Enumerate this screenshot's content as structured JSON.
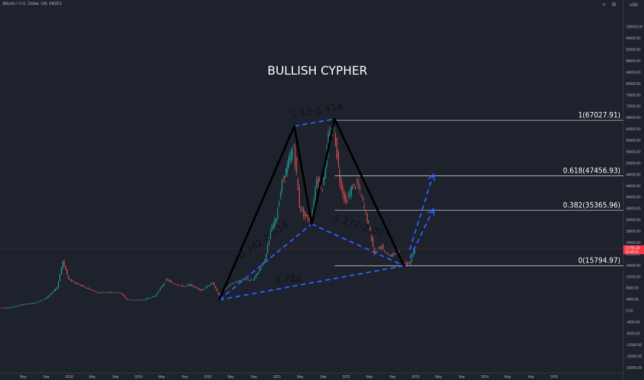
{
  "header": {
    "symbol_title": "Bitcoin / U.S. Dollar, 1W, INDEX",
    "icons": [
      "camera-icon",
      "settings-icon"
    ]
  },
  "price_axis": {
    "currency": "USD",
    "current_price": "21792.43",
    "countdown": "15:49:51"
  },
  "colors": {
    "background": "#1e222d",
    "up": "#26a69a",
    "down": "#ef5350",
    "pattern_line": "#000000",
    "projection": "#2962ff",
    "fib_level": "#d1d4dc",
    "price_line": "#f23645"
  },
  "chart_data": {
    "type": "candlestick",
    "title": "BULLISH CYPHER",
    "ylim": [
      -22000,
      106000
    ],
    "y_ticks": [
      "100000.00",
      "96000.00",
      "92000.00",
      "88000.00",
      "84000.00",
      "80000.00",
      "76000.00",
      "72000.00",
      "68000.00",
      "64000.00",
      "60000.00",
      "56000.00",
      "52000.00",
      "48000.00",
      "44000.00",
      "40000.00",
      "36000.00",
      "32000.00",
      "28000.00",
      "24000.00",
      "20000.00",
      "16000.00",
      "12000.00",
      "8000.00",
      "4000.00",
      "0.00",
      "-4000.00",
      "-8000.00",
      "-12000.00",
      "-16000.00",
      "-20000.00"
    ],
    "x_ticks": [
      "May",
      "Sep",
      "2018",
      "May",
      "Sep",
      "2019",
      "May",
      "Sep",
      "2020",
      "May",
      "Sep",
      "2021",
      "May",
      "Sep",
      "2022",
      "May",
      "Sep",
      "2023",
      "May",
      "Sep",
      "2024",
      "May",
      "Sep",
      "2025"
    ],
    "x_range": [
      "2017-01",
      "2026-01"
    ],
    "price_path": [
      [
        "2017-01",
        900
      ],
      [
        "2017-03",
        1100
      ],
      [
        "2017-05",
        2200
      ],
      [
        "2017-07",
        2600
      ],
      [
        "2017-09",
        4300
      ],
      [
        "2017-11",
        8000
      ],
      [
        "2017-12",
        17500
      ],
      [
        "2018-01",
        11000
      ],
      [
        "2018-02",
        10000
      ],
      [
        "2018-04",
        8000
      ],
      [
        "2018-06",
        6300
      ],
      [
        "2018-08",
        6500
      ],
      [
        "2018-10",
        6400
      ],
      [
        "2018-11",
        4000
      ],
      [
        "2018-12",
        3700
      ],
      [
        "2019-02",
        3800
      ],
      [
        "2019-04",
        5200
      ],
      [
        "2019-06",
        11000
      ],
      [
        "2019-07",
        9600
      ],
      [
        "2019-09",
        8500
      ],
      [
        "2019-10",
        9100
      ],
      [
        "2019-12",
        7200
      ],
      [
        "2020-02",
        9800
      ],
      [
        "2020-03",
        5500
      ],
      [
        "2020-05",
        9200
      ],
      [
        "2020-07",
        11000
      ],
      [
        "2020-09",
        10700
      ],
      [
        "2020-11",
        18000
      ],
      [
        "2020-12",
        28000
      ],
      [
        "2021-01",
        33000
      ],
      [
        "2021-02",
        45000
      ],
      [
        "2021-04",
        58000
      ],
      [
        "2021-05",
        37000
      ],
      [
        "2021-06",
        33000
      ],
      [
        "2021-07",
        32000
      ],
      [
        "2021-08",
        47000
      ],
      [
        "2021-09",
        43000
      ],
      [
        "2021-10",
        61000
      ],
      [
        "2021-11",
        64000
      ],
      [
        "2021-12",
        46000
      ],
      [
        "2022-01",
        38000
      ],
      [
        "2022-02",
        43000
      ],
      [
        "2022-03",
        45000
      ],
      [
        "2022-04",
        38000
      ],
      [
        "2022-05",
        30000
      ],
      [
        "2022-06",
        20000
      ],
      [
        "2022-07",
        23000
      ],
      [
        "2022-08",
        20000
      ],
      [
        "2022-09",
        19500
      ],
      [
        "2022-10",
        20500
      ],
      [
        "2022-11",
        16500
      ],
      [
        "2022-12",
        16600
      ],
      [
        "2023-01",
        21800
      ]
    ],
    "pattern": {
      "points": [
        [
          "2020-03",
          3800
        ],
        [
          "2021-04",
          65000
        ],
        [
          "2021-07",
          30500
        ],
        [
          "2021-11",
          67500
        ],
        [
          "2022-11",
          15800
        ]
      ],
      "projections": [
        [
          [
            "2022-12",
            21500
          ],
          [
            "2023-04",
            47500
          ]
        ],
        [
          [
            "2022-12",
            18500
          ],
          [
            "2023-04",
            35300
          ]
        ]
      ]
    },
    "fib_levels": [
      {
        "label": "1(67027.91)",
        "value": 67027.91
      },
      {
        "label": "0.618(47456.93)",
        "value": 47456.93
      },
      {
        "label": "0.382(35365.96)",
        "value": 35365.96
      },
      {
        "label": "0(15794.97)",
        "value": 15794.97
      }
    ],
    "annotations": [
      {
        "text": "1.13-1.414",
        "date": "2021-08",
        "price": 69500,
        "angle": -9
      },
      {
        "text": "0.362-0.618",
        "date": "2020-11",
        "price": 24000,
        "angle": -34
      },
      {
        "text": "1.272-2.00",
        "date": "2022-03",
        "price": 29000,
        "angle": 18
      },
      {
        "text": "0.786",
        "date": "2021-03",
        "price": 10000,
        "angle": 0
      }
    ],
    "current_price": 21792.43
  }
}
